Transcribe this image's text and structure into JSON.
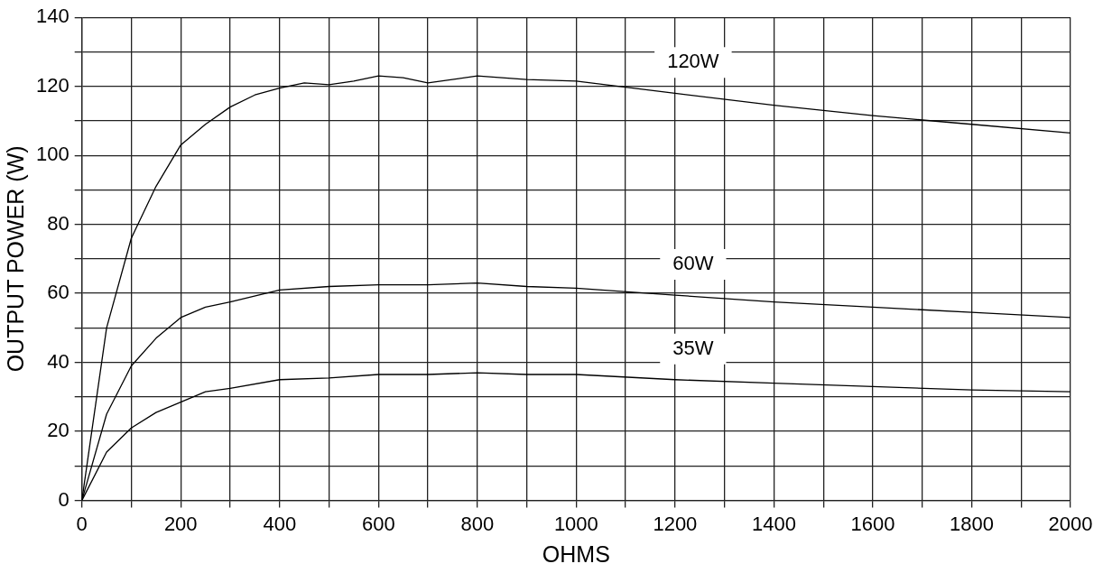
{
  "chart_data": {
    "type": "line",
    "xlabel": "OHMS",
    "ylabel": "OUTPUT POWER (W)",
    "xlim": [
      0,
      2000
    ],
    "ylim": [
      0,
      140
    ],
    "xticks": [
      0,
      {
        "value": 100,
        "label": null
      },
      200,
      {
        "value": 300,
        "label": null
      },
      400,
      {
        "value": 500,
        "label": null
      },
      600,
      {
        "value": 700,
        "label": null
      },
      800,
      {
        "value": 900,
        "label": null
      },
      1000,
      {
        "value": 1100,
        "label": null
      },
      1200,
      {
        "value": 1300,
        "label": null
      },
      1400,
      {
        "value": 1500,
        "label": null
      },
      1600,
      {
        "value": 1700,
        "label": null
      },
      1800,
      {
        "value": 1900,
        "label": null
      },
      2000
    ],
    "yticks": [
      0,
      {
        "value": 10,
        "label": null
      },
      20,
      {
        "value": 30,
        "label": null
      },
      40,
      {
        "value": 50,
        "label": null
      },
      60,
      {
        "value": 70,
        "label": null
      },
      80,
      {
        "value": 90,
        "label": null
      },
      100,
      {
        "value": 110,
        "label": null
      },
      120,
      {
        "value": 130,
        "label": null
      },
      140
    ],
    "grid": true,
    "legend": false,
    "marker": "none",
    "line_style": "solid",
    "series": [
      {
        "name": "120W",
        "color": "#000000",
        "x": [
          0,
          50,
          100,
          150,
          200,
          250,
          300,
          350,
          400,
          450,
          500,
          550,
          600,
          650,
          700,
          800,
          900,
          1000,
          1200,
          1400,
          1600,
          1800,
          2000
        ],
        "values": [
          0,
          50,
          76,
          91,
          103,
          109,
          114,
          117.5,
          119.5,
          121,
          120.5,
          121.5,
          123,
          122.5,
          121,
          123,
          122,
          121.5,
          118,
          114.5,
          111.5,
          109,
          106.5
        ]
      },
      {
        "name": "60W",
        "color": "#000000",
        "x": [
          0,
          50,
          100,
          150,
          200,
          250,
          300,
          400,
          500,
          600,
          700,
          800,
          900,
          1000,
          1200,
          1400,
          1600,
          1800,
          2000
        ],
        "values": [
          0,
          25,
          39,
          47,
          53,
          56,
          57.5,
          61,
          62,
          62.5,
          62.5,
          63,
          62,
          61.5,
          59.5,
          57.5,
          56,
          54.5,
          53
        ]
      },
      {
        "name": "35W",
        "color": "#000000",
        "x": [
          0,
          50,
          100,
          150,
          200,
          250,
          300,
          400,
          500,
          600,
          700,
          800,
          900,
          1000,
          1200,
          1400,
          1600,
          1800,
          2000
        ],
        "values": [
          0,
          14,
          21,
          25.5,
          28.5,
          31.5,
          32.5,
          35,
          35.5,
          36.5,
          36.5,
          37,
          36.5,
          36.5,
          35,
          34,
          33,
          32,
          31.5
        ]
      }
    ]
  }
}
